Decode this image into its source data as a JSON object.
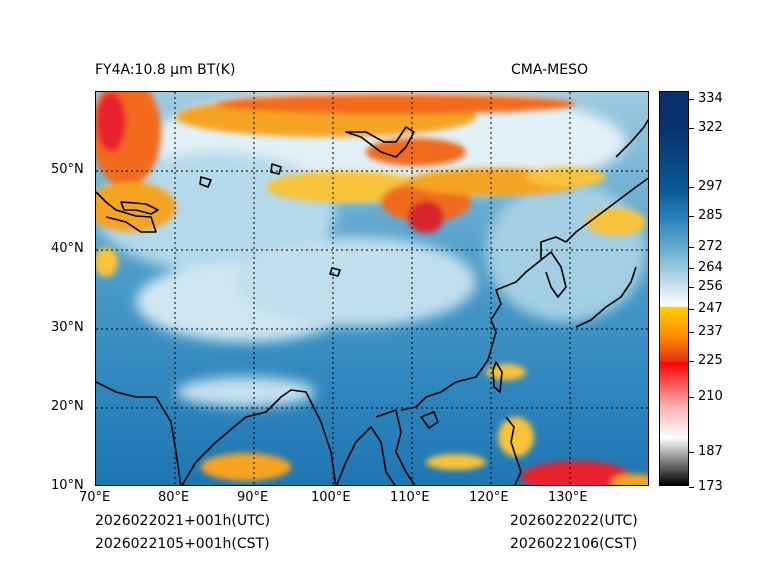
{
  "title_left": "FY4A:10.8 µm BT(K)",
  "title_right": "CMA-MESO",
  "time_left": {
    "utc": "2026022021+001h(UTC)",
    "cst": "2026022105+001h(CST)"
  },
  "time_right": {
    "utc": "2026022022(UTC)",
    "cst": "2026022106(CST)"
  },
  "axes": {
    "lon_ticks": [
      "70°E",
      "80°E",
      "90°E",
      "100°E",
      "110°E",
      "120°E",
      "130°E"
    ],
    "lat_ticks": [
      "10°N",
      "20°N",
      "30°N",
      "40°N",
      "50°N"
    ]
  },
  "colorbar": {
    "ticks": [
      "334",
      "322",
      "297",
      "285",
      "272",
      "264",
      "256",
      "247",
      "237",
      "225",
      "210",
      "187",
      "173"
    ],
    "colors": {
      "cold_white": "#ffffff",
      "cold_black": "#000000",
      "red": "#ff0000",
      "orange": "#ff8c00",
      "yellow": "#ffd000",
      "light_blue": "#dceef6",
      "mid_blue": "#1f77b4",
      "dark_blue": "#08306b"
    }
  }
}
